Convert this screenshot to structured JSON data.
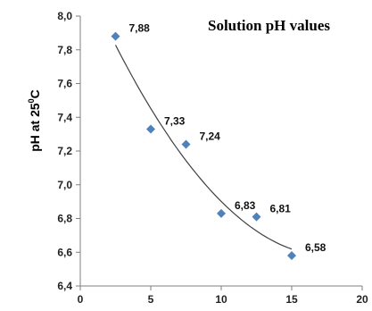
{
  "chart_data": {
    "type": "scatter",
    "title": "Solution pH values",
    "ylabel_main": "pH at 25",
    "ylabel_sup": "0",
    "ylabel_unit": "C",
    "xlabel": "",
    "xlim": [
      0,
      20
    ],
    "ylim": [
      6.4,
      8.0
    ],
    "x_ticks": [
      "0",
      "5",
      "10",
      "15",
      "20"
    ],
    "y_ticks": [
      "6,4",
      "6,6",
      "6,8",
      "7,0",
      "7,2",
      "7,4",
      "7,6",
      "7,8",
      "8,0"
    ],
    "grid": false,
    "trendline": true,
    "marker_color": "#4f81bd",
    "trend_color": "#404040",
    "points": [
      {
        "x": 2.5,
        "y": 7.88,
        "label": "7,88"
      },
      {
        "x": 5,
        "y": 7.33,
        "label": "7,33"
      },
      {
        "x": 7.5,
        "y": 7.24,
        "label": "7,24"
      },
      {
        "x": 10,
        "y": 6.83,
        "label": "6,83"
      },
      {
        "x": 12.5,
        "y": 6.81,
        "label": "6,81"
      },
      {
        "x": 15,
        "y": 6.58,
        "label": "6,58"
      }
    ]
  }
}
